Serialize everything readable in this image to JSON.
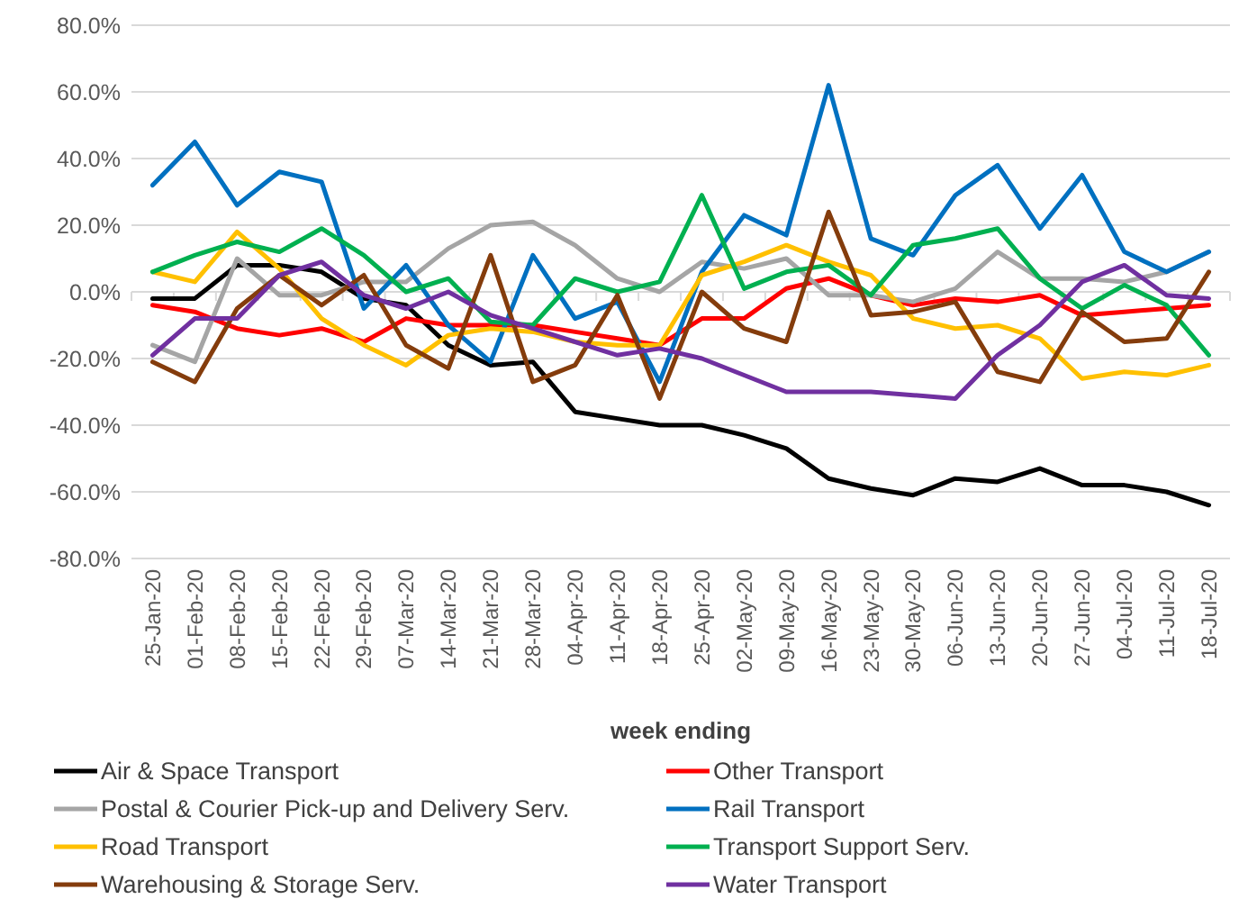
{
  "chart_data": {
    "type": "line",
    "xlabel": "week ending",
    "categories": [
      "25-Jan-20",
      "01-Feb-20",
      "08-Feb-20",
      "15-Feb-20",
      "22-Feb-20",
      "29-Feb-20",
      "07-Mar-20",
      "14-Mar-20",
      "21-Mar-20",
      "28-Mar-20",
      "04-Apr-20",
      "11-Apr-20",
      "18-Apr-20",
      "25-Apr-20",
      "02-May-20",
      "09-May-20",
      "16-May-20",
      "23-May-20",
      "30-May-20",
      "06-Jun-20",
      "13-Jun-20",
      "20-Jun-20",
      "27-Jun-20",
      "04-Jul-20",
      "11-Jul-20",
      "18-Jul-20"
    ],
    "ylim": [
      -80,
      80
    ],
    "yticks": [
      {
        "value": -80,
        "label": "-80.0%"
      },
      {
        "value": -60,
        "label": "-60.0%"
      },
      {
        "value": -40,
        "label": "-40.0%"
      },
      {
        "value": -20,
        "label": "-20.0%"
      },
      {
        "value": 0,
        "label": "0.0%"
      },
      {
        "value": 20,
        "label": "20.0%"
      },
      {
        "value": 40,
        "label": "40.0%"
      },
      {
        "value": 60,
        "label": "60.0%"
      },
      {
        "value": 80,
        "label": "80.0%"
      }
    ],
    "grid": "y",
    "legend": "bottom",
    "marker": "none",
    "line_style": "solid",
    "series": [
      {
        "name": "Air & Space Transport",
        "color": "#000000",
        "values": [
          -2,
          -2,
          8,
          8,
          6,
          -2,
          -4,
          -16,
          -22,
          -21,
          -36,
          -38,
          -40,
          -40,
          -43,
          -47,
          -56,
          -59,
          -61,
          -56,
          -57,
          -53,
          -58,
          -58,
          -60,
          -64
        ]
      },
      {
        "name": "Other Transport",
        "color": "#ff0000",
        "values": [
          -4,
          -6,
          -11,
          -13,
          -11,
          -15,
          -8,
          -10,
          -10,
          -10,
          -12,
          -14,
          -16,
          -8,
          -8,
          1,
          4,
          -1,
          -4,
          -2,
          -3,
          -1,
          -7,
          -6,
          -5,
          -4
        ]
      },
      {
        "name": "Postal & Courier Pick-up and Delivery Serv.",
        "color": "#a5a5a5",
        "values": [
          -16,
          -21,
          10,
          -1,
          -1,
          3,
          3,
          13,
          20,
          21,
          14,
          4,
          0,
          9,
          7,
          10,
          -1,
          -1,
          -3,
          1,
          12,
          4,
          4,
          3,
          6,
          12
        ]
      },
      {
        "name": "Rail Transport",
        "color": "#0070c0",
        "values": [
          32,
          45,
          26,
          36,
          33,
          -5,
          8,
          -10,
          -21,
          11,
          -8,
          -3,
          -27,
          6,
          23,
          17,
          62,
          16,
          11,
          29,
          38,
          19,
          35,
          12,
          6,
          12
        ]
      },
      {
        "name": "Road Transport",
        "color": "#ffc000",
        "values": [
          6,
          3,
          18,
          7,
          -8,
          -16,
          -22,
          -13,
          -11,
          -12,
          -15,
          -16,
          -16,
          5,
          9,
          14,
          9,
          5,
          -8,
          -11,
          -10,
          -14,
          -26,
          -24,
          -25,
          -22
        ]
      },
      {
        "name": "Transport Support Serv.",
        "color": "#00b050",
        "values": [
          6,
          11,
          15,
          12,
          19,
          11,
          0,
          4,
          -9,
          -10,
          4,
          0,
          3,
          29,
          1,
          6,
          8,
          -1,
          14,
          16,
          19,
          4,
          -5,
          2,
          -4,
          -19
        ]
      },
      {
        "name": "Warehousing & Storage Serv.",
        "color": "#843c0c",
        "values": [
          -21,
          -27,
          -5,
          5,
          -4,
          5,
          -16,
          -23,
          11,
          -27,
          -22,
          -1,
          -32,
          0,
          -11,
          -15,
          24,
          -7,
          -6,
          -3,
          -24,
          -27,
          -6,
          -15,
          -14,
          6
        ]
      },
      {
        "name": "Water Transport",
        "color": "#7030a0",
        "values": [
          -19,
          -8,
          -8,
          5,
          9,
          -1,
          -5,
          0,
          -7,
          -11,
          -15,
          -19,
          -17,
          -20,
          -25,
          -30,
          -30,
          -30,
          -31,
          -32,
          -19,
          -10,
          3,
          8,
          -1,
          -2
        ]
      }
    ]
  }
}
